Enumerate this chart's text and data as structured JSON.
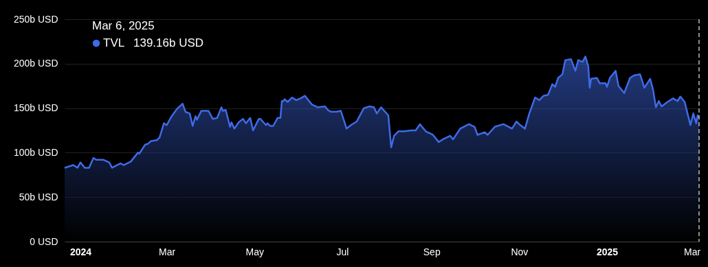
{
  "chart_data": {
    "type": "area",
    "x": [
      "2023-12-21",
      "2023-12-27",
      "2023-12-30",
      "2024-01-01",
      "2024-01-04",
      "2024-01-07",
      "2024-01-10",
      "2024-01-12",
      "2024-01-17",
      "2024-01-21",
      "2024-01-23",
      "2024-01-29",
      "2024-01-31",
      "2024-02-05",
      "2024-02-10",
      "2024-02-11",
      "2024-02-15",
      "2024-02-17",
      "2024-02-19",
      "2024-02-23",
      "2024-02-25",
      "2024-02-28",
      "2024-03-01",
      "2024-03-04",
      "2024-03-08",
      "2024-03-12",
      "2024-03-14",
      "2024-03-17",
      "2024-03-19",
      "2024-03-21",
      "2024-03-22",
      "2024-03-25",
      "2024-03-30",
      "2024-04-02",
      "2024-04-05",
      "2024-04-08",
      "2024-04-09",
      "2024-04-11",
      "2024-04-14",
      "2024-04-15",
      "2024-04-17",
      "2024-04-20",
      "2024-04-23",
      "2024-04-25",
      "2024-04-28",
      "2024-04-30",
      "2024-05-04",
      "2024-05-05",
      "2024-05-09",
      "2024-05-10",
      "2024-05-12",
      "2024-05-14",
      "2024-05-17",
      "2024-05-19",
      "2024-05-20",
      "2024-05-21",
      "2024-05-22",
      "2024-05-24",
      "2024-05-27",
      "2024-05-30",
      "2024-06-02",
      "2024-06-05",
      "2024-06-10",
      "2024-06-14",
      "2024-06-19",
      "2024-06-21",
      "2024-06-23",
      "2024-06-27",
      "2024-06-30",
      "2024-07-04",
      "2024-07-07",
      "2024-07-11",
      "2024-07-16",
      "2024-07-20",
      "2024-07-23",
      "2024-07-25",
      "2024-07-28",
      "2024-08-02",
      "2024-08-04",
      "2024-08-06",
      "2024-08-09",
      "2024-08-13",
      "2024-08-18",
      "2024-08-21",
      "2024-08-24",
      "2024-08-28",
      "2024-09-02",
      "2024-09-06",
      "2024-09-09",
      "2024-09-14",
      "2024-09-16",
      "2024-09-21",
      "2024-09-27",
      "2024-10-01",
      "2024-10-03",
      "2024-10-08",
      "2024-10-10",
      "2024-10-15",
      "2024-10-21",
      "2024-10-27",
      "2024-10-30",
      "2024-11-01",
      "2024-11-05",
      "2024-11-08",
      "2024-11-12",
      "2024-11-15",
      "2024-11-18",
      "2024-11-21",
      "2024-11-24",
      "2024-11-26",
      "2024-11-28",
      "2024-12-01",
      "2024-12-03",
      "2024-12-07",
      "2024-12-10",
      "2024-12-12",
      "2024-12-15",
      "2024-12-17",
      "2024-12-19",
      "2024-12-20",
      "2024-12-21",
      "2024-12-25",
      "2024-12-27",
      "2024-12-31",
      "2025-01-01",
      "2025-01-03",
      "2025-01-07",
      "2025-01-09",
      "2025-01-13",
      "2025-01-17",
      "2025-01-20",
      "2025-01-24",
      "2025-01-27",
      "2025-01-31",
      "2025-02-02",
      "2025-02-04",
      "2025-02-06",
      "2025-02-08",
      "2025-02-12",
      "2025-02-16",
      "2025-02-19",
      "2025-02-21",
      "2025-02-24",
      "2025-02-26",
      "2025-02-28",
      "2025-03-02",
      "2025-03-04",
      "2025-03-05",
      "2025-03-06"
    ],
    "series": [
      {
        "name": "TVL",
        "color": "#3f6ae8",
        "values": [
          83,
          86,
          83,
          89,
          83,
          83,
          94,
          92,
          92,
          89,
          83,
          88,
          86,
          90,
          100,
          99,
          109,
          110,
          113,
          114,
          117,
          133,
          131,
          140,
          149,
          155,
          146,
          144,
          130,
          141,
          137,
          147,
          147,
          138,
          139,
          151,
          147,
          148,
          129,
          134,
          127,
          134,
          138,
          133,
          139,
          125,
          138,
          138,
          131,
          133,
          130,
          130,
          139,
          139,
          158,
          158,
          160,
          157,
          162,
          159,
          161,
          164,
          154,
          151,
          152,
          148,
          146,
          146,
          147,
          127,
          131,
          135,
          150,
          152,
          151,
          144,
          151,
          142,
          106,
          119,
          124,
          124,
          125,
          125,
          132,
          124,
          120,
          112,
          115,
          119,
          115,
          127,
          132,
          129,
          120,
          123,
          120,
          129,
          132,
          127,
          135,
          132,
          127,
          144,
          162,
          159,
          164,
          165,
          177,
          174,
          184,
          188,
          204,
          205,
          192,
          204,
          202,
          208,
          197,
          173,
          183,
          184,
          178,
          178,
          174,
          184,
          192,
          175,
          167,
          184,
          187,
          188,
          173,
          183,
          171,
          151,
          158,
          152,
          157,
          161,
          158,
          163,
          157,
          144,
          131,
          144,
          133,
          142,
          139.16
        ]
      }
    ],
    "xlim": [
      "2023-12-21",
      "2025-03-06"
    ],
    "xticks": [
      {
        "value": "2024-01-01",
        "label": "2024"
      },
      {
        "value": "2024-03-01",
        "label": "Mar"
      },
      {
        "value": "2024-05-01",
        "label": "May"
      },
      {
        "value": "2024-07-01",
        "label": "Jul"
      },
      {
        "value": "2024-09-01",
        "label": "Sep"
      },
      {
        "value": "2024-11-01",
        "label": "Nov"
      },
      {
        "value": "2025-01-01",
        "label": "2025"
      },
      {
        "value": "2025-03-01",
        "label": "Mar"
      }
    ],
    "ylim": [
      0,
      250
    ],
    "yticks": [
      {
        "value": 0,
        "label": "0 USD"
      },
      {
        "value": 50,
        "label": "50b USD"
      },
      {
        "value": 100,
        "label": "100b USD"
      },
      {
        "value": 150,
        "label": "150b USD"
      },
      {
        "value": 200,
        "label": "200b USD"
      },
      {
        "value": 250,
        "label": "250b USD"
      }
    ],
    "grid": "y",
    "legend": "top left",
    "ref_lines": [
      {
        "axis": "x",
        "value": "2025-03-06",
        "color": "#bbbbbb",
        "line_style": "dashed"
      }
    ],
    "annotations": [
      "Mar 6, 2025",
      "139.16b USD"
    ]
  }
}
